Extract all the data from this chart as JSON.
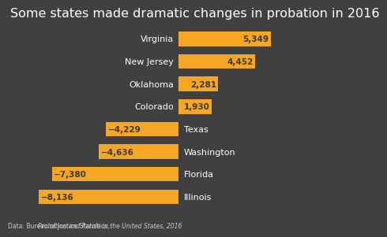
{
  "title": "Some states made dramatic changes in probation in 2016",
  "states": [
    "Virginia",
    "New Jersey",
    "Oklahoma",
    "Colorado",
    "Texas",
    "Washington",
    "Florida",
    "Illinois"
  ],
  "values": [
    5349,
    4452,
    2281,
    1930,
    -4229,
    -4636,
    -7380,
    -8136
  ],
  "bar_color": "#F5A623",
  "bg_color": "#404040",
  "text_color_inside": "#3a3a3a",
  "label_color": "#ffffff",
  "footnote_prefix": "Data: Bureau of Justice Statistics, ",
  "footnote_italic": "Probation and Parole in the United States, 2016",
  "title_fontsize": 11.5,
  "bar_height": 0.65,
  "xlim_min": -9800,
  "xlim_max": 7200
}
